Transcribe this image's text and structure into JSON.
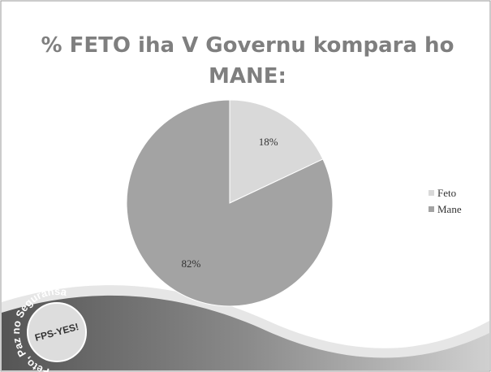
{
  "chart_data": {
    "type": "pie",
    "title": [
      "% FETO iha V Governu kompara ho",
      "MANE:"
    ],
    "categories": [
      "Feto",
      "Mane"
    ],
    "values": [
      18,
      82
    ],
    "value_labels": [
      "18%",
      "82%"
    ],
    "colors": [
      "#d9d9d9",
      "#a3a3a3"
    ],
    "legend": "right"
  },
  "logo": {
    "ring_text": "Feto, Paz no Seguransa",
    "center_text": "FPS-YES!"
  }
}
